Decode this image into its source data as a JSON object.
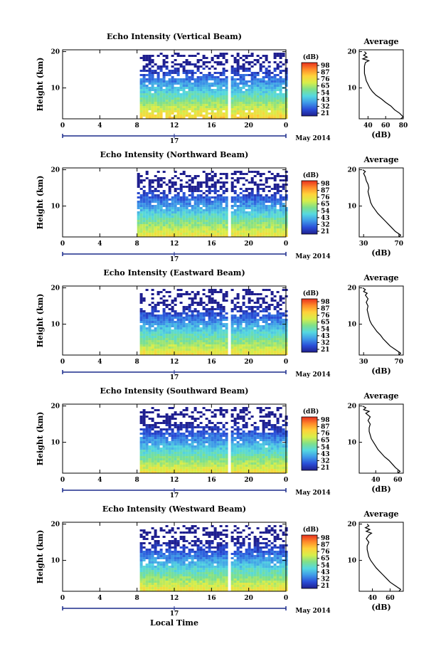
{
  "figure": {
    "colormap_stops": [
      "#1f1f8f",
      "#2a4fd8",
      "#3f9ae8",
      "#55d8e0",
      "#7fe08a",
      "#d8ee4a",
      "#ffd23a",
      "#ff8a2a",
      "#e8301e"
    ],
    "xlabel": "Local Time",
    "date_label": "May 2014",
    "day_label": "17"
  },
  "chart_data": [
    {
      "type": "heatmap",
      "title": "Echo Intensity (Vertical Beam)",
      "ylabel": "Height (km)",
      "xlim": [
        0,
        24
      ],
      "ylim": [
        1.5,
        20.5
      ],
      "xticks": [
        "0",
        "4",
        "8",
        "12",
        "16",
        "20",
        "0"
      ],
      "yticks": [
        "20",
        "10"
      ],
      "data_start_hour": 8.3,
      "gap_hours": [
        17.5,
        17.8
      ],
      "colorbar": {
        "unit": "(dB)",
        "ticks": [
          "98",
          "87",
          "76",
          "65",
          "54",
          "43",
          "32",
          "21"
        ]
      },
      "average_profile": {
        "title": "Average",
        "xlabel": "(dB)",
        "xlim": [
          30,
          80
        ],
        "xticks": [
          "40",
          "60",
          "80"
        ],
        "ylim": [
          1.5,
          20.5
        ],
        "yticks": [
          "20",
          "10"
        ],
        "height": [
          1.5,
          2.0,
          3.0,
          4.0,
          5.0,
          6.0,
          7.0,
          8.0,
          9.0,
          10.0,
          11.0,
          12.0,
          13.0,
          14.0,
          15.0,
          16.0,
          17.0,
          17.5,
          18.0,
          18.5,
          19.0,
          19.5,
          20.0
        ],
        "values": [
          77,
          80,
          76,
          70,
          66,
          60,
          55,
          49,
          45,
          42,
          40,
          38,
          37,
          36,
          36,
          36,
          37,
          41,
          34,
          39,
          35,
          38,
          36
        ]
      }
    },
    {
      "type": "heatmap",
      "title": "Echo Intensity (Northward Beam)",
      "ylabel": "Height (km)",
      "xlim": [
        0,
        24
      ],
      "ylim": [
        1.5,
        20.5
      ],
      "xticks": [
        "0",
        "4",
        "8",
        "12",
        "16",
        "20",
        "0"
      ],
      "yticks": [
        "20",
        "10"
      ],
      "data_start_hour": 8.0,
      "gap_hours": [
        17.5,
        17.8
      ],
      "colorbar": {
        "unit": "(dB)",
        "ticks": [
          "98",
          "87",
          "76",
          "65",
          "54",
          "43",
          "32",
          "21"
        ]
      },
      "average_profile": {
        "title": "Average",
        "xlabel": "(dB)",
        "xlim": [
          25,
          75
        ],
        "xticks": [
          "30",
          "70"
        ],
        "ylim": [
          1.5,
          20.5
        ],
        "yticks": [
          "20",
          "10"
        ],
        "height": [
          1.5,
          2.0,
          3.0,
          4.0,
          5.0,
          6.0,
          7.0,
          8.0,
          9.0,
          10.0,
          11.0,
          12.0,
          13.0,
          14.0,
          15.0,
          16.0,
          17.0,
          18.0,
          19.0,
          19.5,
          20.0
        ],
        "values": [
          70,
          72,
          66,
          62,
          58,
          54,
          50,
          46,
          43,
          40,
          38,
          37,
          36,
          35,
          36,
          35,
          33,
          32,
          30,
          32,
          29
        ]
      }
    },
    {
      "type": "heatmap",
      "title": "Echo Intensity (Eastward Beam)",
      "ylabel": "Height (km)",
      "xlim": [
        0,
        24
      ],
      "ylim": [
        1.5,
        20.5
      ],
      "xticks": [
        "0",
        "4",
        "8",
        "12",
        "16",
        "20",
        "0"
      ],
      "yticks": [
        "20",
        "10"
      ],
      "data_start_hour": 8.3,
      "gap_hours": [
        17.5,
        17.8
      ],
      "colorbar": {
        "unit": "(dB)",
        "ticks": [
          "98",
          "87",
          "76",
          "65",
          "54",
          "43",
          "32",
          "21"
        ]
      },
      "average_profile": {
        "title": "Average",
        "xlabel": "(dB)",
        "xlim": [
          25,
          75
        ],
        "xticks": [
          "30",
          "70"
        ],
        "ylim": [
          1.5,
          20.5
        ],
        "yticks": [
          "20",
          "10"
        ],
        "height": [
          1.5,
          2.0,
          3.0,
          4.0,
          5.0,
          6.0,
          7.0,
          8.0,
          9.0,
          10.0,
          11.0,
          12.0,
          13.0,
          14.0,
          15.0,
          16.0,
          17.0,
          18.0,
          18.5,
          19.0,
          19.5,
          20.0
        ],
        "values": [
          70,
          72,
          66,
          60,
          56,
          52,
          49,
          45,
          42,
          39,
          37,
          36,
          35,
          34,
          35,
          33,
          35,
          32,
          34,
          30,
          32,
          29
        ]
      }
    },
    {
      "type": "heatmap",
      "title": "Echo Intensity (Southward Beam)",
      "ylabel": "Height (km)",
      "xlim": [
        0,
        24
      ],
      "ylim": [
        1.5,
        20.5
      ],
      "xticks": [
        "0",
        "4",
        "8",
        "12",
        "16",
        "20",
        "0"
      ],
      "yticks": [
        "20",
        "10"
      ],
      "data_start_hour": 8.3,
      "gap_hours": [
        17.5,
        17.8
      ],
      "colorbar": {
        "unit": "(dB)",
        "ticks": [
          "98",
          "87",
          "76",
          "65",
          "54",
          "43",
          "32",
          "21"
        ]
      },
      "average_profile": {
        "title": "Average",
        "xlabel": "(dB)",
        "xlim": [
          25,
          65
        ],
        "xticks": [
          "40",
          "60"
        ],
        "ylim": [
          1.5,
          20.5
        ],
        "yticks": [
          "20",
          "10"
        ],
        "height": [
          1.5,
          2.0,
          3.0,
          4.0,
          5.0,
          6.0,
          7.0,
          8.0,
          9.0,
          10.0,
          11.0,
          12.0,
          13.0,
          14.0,
          15.0,
          16.0,
          17.0,
          18.0,
          18.5,
          19.0,
          19.5,
          20.0
        ],
        "values": [
          60,
          62,
          58,
          55,
          52,
          48,
          45,
          42,
          40,
          38,
          36,
          35,
          34,
          34,
          35,
          33,
          35,
          31,
          34,
          29,
          31,
          28
        ]
      }
    },
    {
      "type": "heatmap",
      "title": "Echo Intensity (Westward Beam)",
      "ylabel": "Height (km)",
      "xlim": [
        0,
        24
      ],
      "ylim": [
        1.5,
        20.5
      ],
      "xticks": [
        "0",
        "4",
        "8",
        "12",
        "16",
        "20",
        "0"
      ],
      "yticks": [
        "20",
        "10"
      ],
      "data_start_hour": 8.3,
      "gap_hours": [
        17.5,
        17.8
      ],
      "colorbar": {
        "unit": "(dB)",
        "ticks": [
          "98",
          "87",
          "76",
          "65",
          "54",
          "43",
          "32",
          "21"
        ]
      },
      "average_profile": {
        "title": "Average",
        "xlabel": "(dB)",
        "xlim": [
          25,
          75
        ],
        "xticks": [
          "40",
          "60"
        ],
        "ylim": [
          1.5,
          20.5
        ],
        "yticks": [
          "20",
          "10"
        ],
        "height": [
          1.5,
          2.0,
          3.0,
          4.0,
          5.0,
          6.0,
          7.0,
          8.0,
          9.0,
          10.0,
          11.0,
          12.0,
          13.0,
          14.0,
          15.0,
          16.0,
          17.0,
          17.5,
          18.0,
          18.5,
          19.0,
          19.5,
          20.0
        ],
        "values": [
          70,
          72,
          66,
          60,
          56,
          52,
          48,
          44,
          41,
          38,
          36,
          35,
          34,
          34,
          36,
          33,
          36,
          39,
          33,
          37,
          32,
          36,
          34
        ]
      }
    }
  ]
}
